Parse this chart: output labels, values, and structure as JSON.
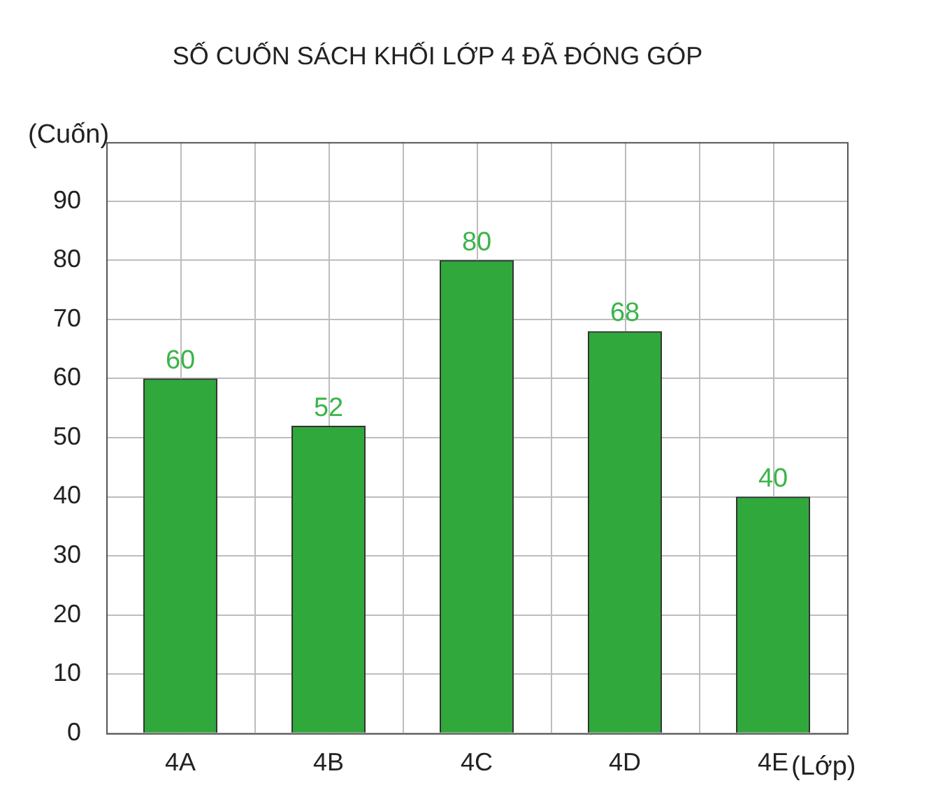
{
  "chart_data": {
    "type": "bar",
    "title": "SỐ CUỐN SÁCH KHỐI LỚP 4 ĐÃ ĐÓNG GÓP",
    "ylabel": "(Cuốn)",
    "xlabel": "(Lớp)",
    "categories": [
      "4A",
      "4B",
      "4C",
      "4D",
      "4E"
    ],
    "values": [
      60,
      52,
      80,
      68,
      40
    ],
    "color": "#30a83c",
    "ylim": [
      0,
      100
    ],
    "yticks": [
      0,
      10,
      20,
      30,
      40,
      50,
      60,
      70,
      80,
      90
    ],
    "grid": true,
    "data_labels": true
  }
}
